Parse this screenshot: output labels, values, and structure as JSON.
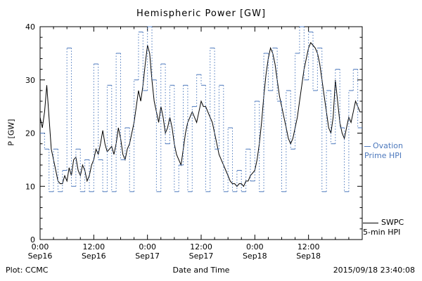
{
  "colors": {
    "ovation_blue": "#4d79bd",
    "line_black": "#000000",
    "frame": "#000000"
  },
  "footer": {
    "left": "Plot: CCMC",
    "right": "2015/09/18 23:40:08"
  },
  "legend": {
    "ovation_line1": "Ovation",
    "ovation_line2": "Prime HPI",
    "swpc_line1": "SWPC",
    "swpc_line2": "5-min HPI"
  },
  "chart_data": {
    "type": "line",
    "title": "Hemispheric Power [GW]",
    "xlabel": "Date and Time",
    "ylabel": "P [GW]",
    "ylim": [
      0,
      40
    ],
    "xlim_hours": [
      0,
      72
    ],
    "grid": false,
    "legend_position": "right",
    "y_ticks": [
      0,
      10,
      20,
      30,
      40
    ],
    "y_minor_step": 2,
    "x_minor_step": 3,
    "x_ticks": [
      {
        "hour": 0,
        "time": "0:00",
        "date": "Sep16"
      },
      {
        "hour": 12,
        "time": "12:00",
        "date": "Sep16"
      },
      {
        "hour": 24,
        "time": "0:00",
        "date": "Sep17"
      },
      {
        "hour": 36,
        "time": "12:00",
        "date": "Sep17"
      },
      {
        "hour": 48,
        "time": "0:00",
        "date": "Sep18"
      },
      {
        "hour": 60,
        "time": "12:00",
        "date": "Sep18"
      }
    ],
    "series": [
      {
        "name": "SWPC 5-min HPI",
        "color": "#000000",
        "style": "solid",
        "x0": 0,
        "dx": 0.5,
        "values": [
          23,
          21,
          24,
          29,
          23,
          17,
          15,
          13,
          11,
          10.5,
          10.5,
          12,
          11,
          13.5,
          12,
          15,
          15.5,
          13,
          12,
          14,
          13,
          11,
          12,
          14,
          15,
          17,
          16,
          18,
          20.5,
          18,
          16.5,
          17,
          17.5,
          16,
          18,
          21,
          19,
          16,
          15,
          17,
          18,
          20,
          22,
          25,
          28,
          26,
          29,
          33,
          36.5,
          35,
          30,
          26,
          24,
          22,
          25,
          23,
          20,
          21,
          23,
          21,
          18,
          16,
          15,
          14,
          17,
          20,
          22,
          23,
          24,
          23,
          22,
          24,
          26,
          25,
          25,
          24,
          23,
          22,
          20,
          18,
          16,
          15,
          14,
          13,
          12,
          11,
          10.5,
          10.5,
          10,
          10.5,
          10.5,
          10,
          11,
          11,
          12,
          12.5,
          13,
          15,
          18,
          22,
          27,
          31,
          34,
          36,
          35,
          33,
          30,
          27,
          25,
          23,
          21,
          19,
          18,
          19,
          21,
          23,
          26,
          29,
          32,
          34,
          36,
          37,
          36.5,
          36,
          35,
          33,
          30,
          27,
          24,
          21,
          20,
          23,
          30,
          26,
          22,
          20,
          19,
          21,
          23,
          22,
          24,
          26,
          25,
          24
        ]
      },
      {
        "name": "Ovation Prime HPI",
        "color": "#4d79bd",
        "style": "step-dotted",
        "x0": 0,
        "dx": 1,
        "values": [
          20,
          17,
          9,
          17,
          9,
          13,
          36,
          10,
          17,
          9,
          15,
          9,
          33,
          15,
          9,
          29,
          9,
          35,
          15,
          21,
          9,
          30,
          39,
          28,
          40,
          30,
          9,
          33,
          18,
          29,
          9,
          14,
          29,
          9,
          25,
          31,
          29,
          9,
          36,
          17,
          29,
          9,
          21,
          9,
          13,
          9,
          17,
          11,
          26,
          9,
          35,
          28,
          36,
          26,
          9,
          28,
          17,
          35,
          40,
          30,
          39,
          28,
          36,
          9,
          28,
          18,
          32,
          21,
          9,
          28,
          32,
          21
        ]
      }
    ]
  }
}
